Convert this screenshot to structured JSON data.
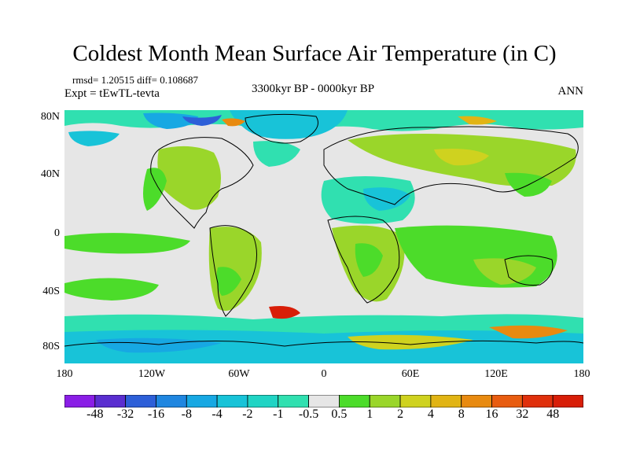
{
  "title": "Coldest Month Mean Surface Air Temperature (in C)",
  "stats": "rmsd= 1.20515 diff= 0.108687",
  "experiment": "Expt = tEwTL-tevta",
  "period": "3300kyr BP - 0000kyr BP",
  "season": "ANN",
  "lat_labels": [
    "80N",
    "40N",
    "0",
    "40S",
    "80S"
  ],
  "lon_labels": [
    "180",
    "120W",
    "60W",
    "0",
    "60E",
    "120E",
    "180"
  ],
  "colorbar": {
    "labels": [
      "-48",
      "-32",
      "-16",
      "-8",
      "-4",
      "-2",
      "-1",
      "-0.5",
      "0.5",
      "1",
      "2",
      "4",
      "8",
      "16",
      "32",
      "48"
    ],
    "colors": [
      "#8a1ee6",
      "#5a2ed0",
      "#2d5fd8",
      "#1f86e0",
      "#17a8e3",
      "#18c3d8",
      "#20d4c4",
      "#30e0b0",
      "#e6e6e6",
      "#4cdc2a",
      "#9ad62a",
      "#cfd21f",
      "#e1b414",
      "#e88a10",
      "#e85c10",
      "#e0300c",
      "#d81e08"
    ]
  },
  "colors": {
    "ocean_neutral": "#e6e6e6",
    "warm_light": "#9ad62a",
    "warm": "#4cdc2a",
    "cool_light": "#30e0b0",
    "cool": "#18c3d8",
    "cold": "#17a8e3",
    "coast": "#000000"
  }
}
